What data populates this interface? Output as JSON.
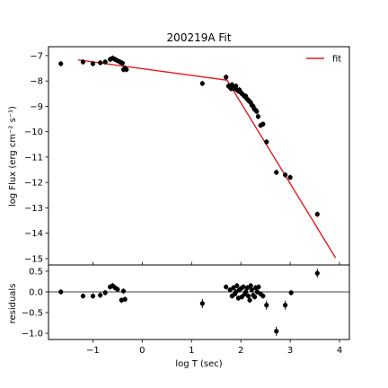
{
  "chart_data": [
    {
      "type": "scatter",
      "title": "200219A Fit",
      "xlabel": "",
      "ylabel": "log Flux (erg cm⁻² s⁻¹)",
      "xlim": [
        -1.9,
        4.2
      ],
      "ylim": [
        -15.25,
        -6.65
      ],
      "yticks": [
        -15,
        -14,
        -13,
        -12,
        -11,
        -10,
        -9,
        -8,
        -7
      ],
      "legend": {
        "position": "top-right",
        "entries": [
          {
            "label": "fit",
            "color": "#e41a1c"
          }
        ]
      },
      "fit": {
        "name": "fit",
        "color": "#e41a1c",
        "x": [
          -1.3,
          1.72,
          3.92
        ],
        "y": [
          -7.17,
          -7.97,
          -14.97
        ]
      },
      "points": {
        "x": [
          -1.65,
          -1.2,
          -1.0,
          -0.85,
          -0.75,
          -0.65,
          -0.6,
          -0.55,
          -0.5,
          -0.45,
          -0.4,
          -0.38,
          -0.35,
          -0.32,
          1.22,
          1.7,
          1.75,
          1.78,
          1.8,
          1.82,
          1.85,
          1.87,
          1.9,
          1.92,
          1.95,
          1.97,
          2.0,
          2.02,
          2.05,
          2.07,
          2.1,
          2.12,
          2.15,
          2.17,
          2.2,
          2.22,
          2.25,
          2.27,
          2.3,
          2.32,
          2.35,
          2.4,
          2.45,
          2.52,
          2.72,
          2.9,
          3.0,
          3.55
        ],
        "y": [
          -7.32,
          -7.25,
          -7.32,
          -7.28,
          -7.25,
          -7.15,
          -7.1,
          -7.15,
          -7.2,
          -7.25,
          -7.3,
          -7.55,
          -7.5,
          -7.55,
          -8.1,
          -7.85,
          -8.2,
          -8.25,
          -8.3,
          -8.15,
          -8.3,
          -8.25,
          -8.2,
          -8.35,
          -8.4,
          -8.35,
          -8.45,
          -8.5,
          -8.55,
          -8.6,
          -8.6,
          -8.7,
          -8.75,
          -8.8,
          -8.85,
          -8.95,
          -9.0,
          -9.1,
          -9.15,
          -9.2,
          -9.4,
          -9.75,
          -9.7,
          -10.4,
          -11.6,
          -11.7,
          -11.8,
          -13.25
        ]
      }
    },
    {
      "type": "scatter",
      "title": "",
      "xlabel": "log T (sec)",
      "ylabel": "residuals",
      "xlim": [
        -1.9,
        4.2
      ],
      "ylim": [
        -1.15,
        0.65
      ],
      "xticks": [
        -1,
        0,
        1,
        2,
        3,
        4
      ],
      "yticks": [
        -1.0,
        -0.5,
        0.0,
        0.5
      ],
      "reference_line": 0,
      "points": {
        "x": [
          -1.65,
          -1.2,
          -1.0,
          -0.85,
          -0.75,
          -0.65,
          -0.6,
          -0.55,
          -0.5,
          -0.42,
          -0.38,
          -0.35,
          1.22,
          1.7,
          1.78,
          1.82,
          1.85,
          1.88,
          1.9,
          1.92,
          1.95,
          1.97,
          2.0,
          2.02,
          2.05,
          2.08,
          2.1,
          2.13,
          2.15,
          2.18,
          2.2,
          2.22,
          2.25,
          2.28,
          2.3,
          2.33,
          2.36,
          2.4,
          2.45,
          2.52,
          2.72,
          2.9,
          3.02,
          3.55
        ],
        "y": [
          0.0,
          -0.1,
          -0.1,
          -0.08,
          -0.02,
          0.12,
          0.15,
          0.1,
          0.06,
          -0.2,
          0.02,
          -0.18,
          -0.28,
          0.12,
          0.05,
          -0.1,
          0.1,
          -0.05,
          0.0,
          0.15,
          -0.15,
          0.05,
          0.08,
          -0.12,
          0.12,
          -0.05,
          0.0,
          0.1,
          -0.1,
          -0.2,
          0.15,
          0.05,
          -0.08,
          -0.12,
          0.1,
          0.0,
          0.12,
          -0.05,
          -0.1,
          -0.32,
          -0.95,
          -0.32,
          -0.02,
          0.45
        ]
      }
    }
  ]
}
